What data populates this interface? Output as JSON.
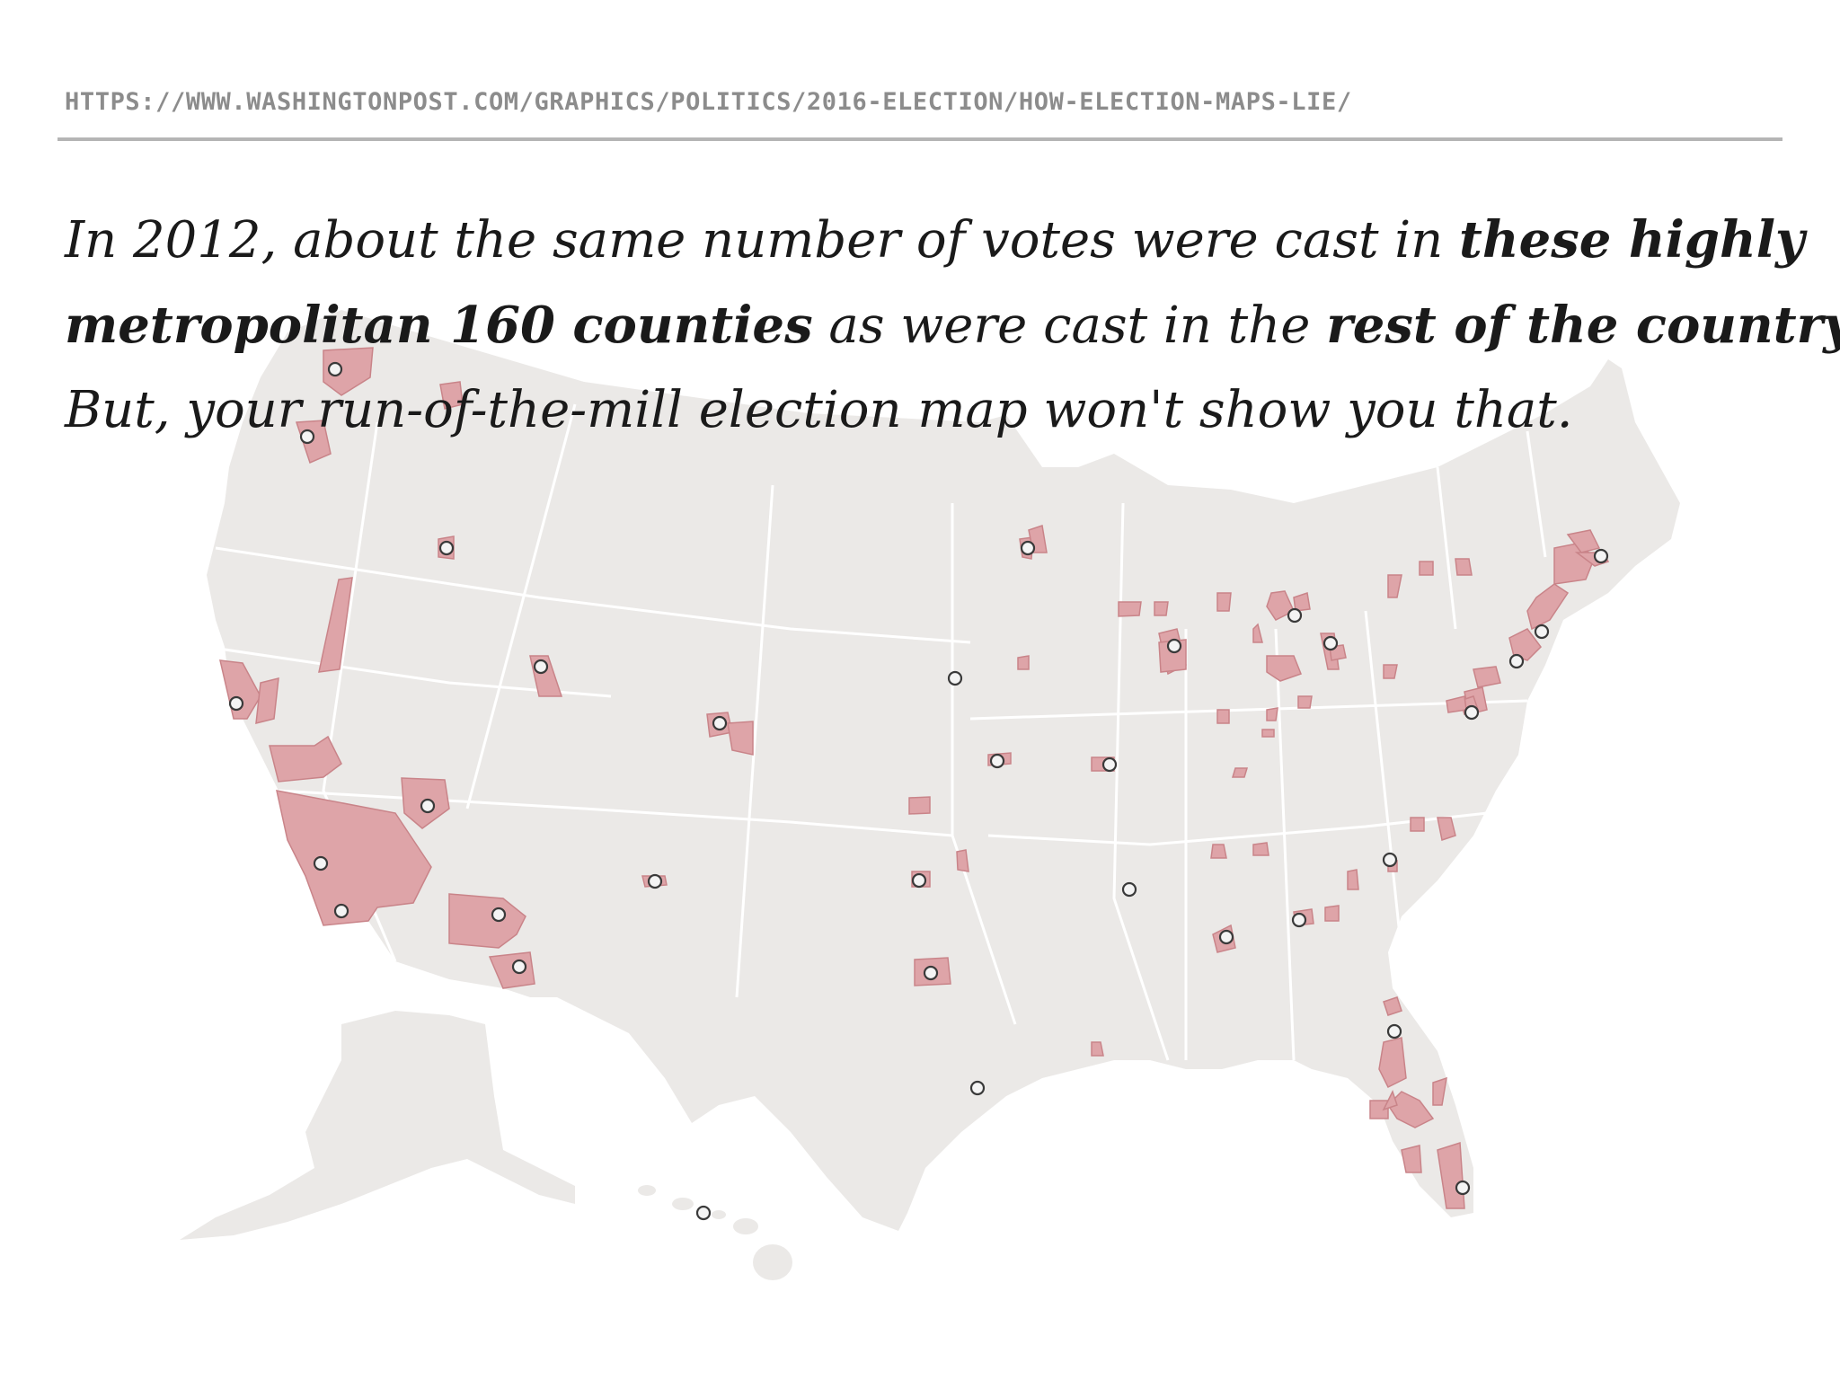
{
  "source_url": "HTTPS://WWW.WASHINGTONPOST.COM/GRAPHICS/POLITICS/2016-ELECTION/HOW-ELECTION-MAPS-LIE/",
  "headline": {
    "line1_a": "In 2012, about the same number of votes were cast in ",
    "line1_b": "these highly",
    "line2_a": "metropolitan 160 counties",
    "line2_b": " as were cast in the ",
    "line2_c": "rest of the country.",
    "line3": "But, your run-of-the-mill election map won't show you that."
  },
  "colors": {
    "land": "#ebe9e7",
    "state_border": "#ffffff",
    "metro_county": "#dea4a8",
    "metro_county_border": "#c98489",
    "city_marker_stroke": "#3a3a3a",
    "city_marker_fill": "#f4f4f4"
  },
  "map": {
    "region": "United States (contiguous, Alaska, Hawaii)",
    "highlighted_counties": 160
  }
}
